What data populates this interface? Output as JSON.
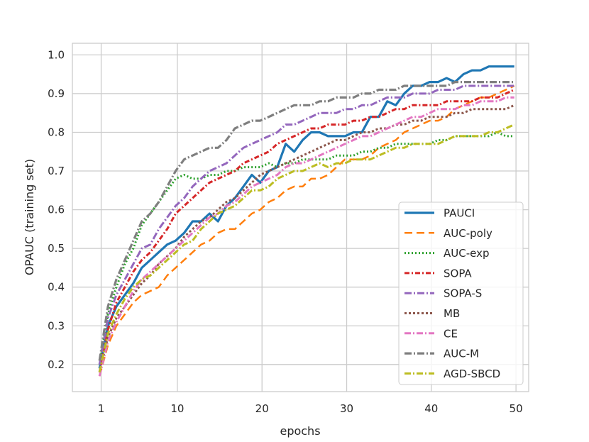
{
  "chart_data": {
    "type": "line",
    "xlabel": "epochs",
    "ylabel": "OPAUC (training set)",
    "xlim": [
      -2.4,
      51.5
    ],
    "ylim": [
      0.13,
      1.03
    ],
    "xticks": [
      1,
      10,
      20,
      30,
      40,
      50
    ],
    "xtick_labels": [
      "1",
      "10",
      "20",
      "30",
      "40",
      "50"
    ],
    "yticks": [
      0.2,
      0.3,
      0.4,
      0.5,
      0.6,
      0.7,
      0.8,
      0.9,
      1.0
    ],
    "ytick_labels": [
      "0.2",
      "0.3",
      "0.4",
      "0.5",
      "0.6",
      "0.7",
      "0.8",
      "0.9",
      "1.0"
    ],
    "grid": true,
    "legend_position": "lower-right",
    "x": [
      1,
      2,
      3,
      4,
      5,
      6,
      7,
      8,
      9,
      10,
      11,
      12,
      13,
      14,
      15,
      16,
      17,
      18,
      19,
      20,
      21,
      22,
      23,
      24,
      25,
      26,
      27,
      28,
      29,
      30,
      31,
      32,
      33,
      34,
      35,
      36,
      37,
      38,
      39,
      40,
      41,
      42,
      43,
      44,
      45,
      46,
      47,
      48,
      49,
      50
    ],
    "series": [
      {
        "name": "PAUCI",
        "color": "#1f77b4",
        "dash": "solid",
        "width": 3.2,
        "values": [
          0.19,
          0.3,
          0.35,
          0.38,
          0.41,
          0.45,
          0.47,
          0.49,
          0.51,
          0.52,
          0.54,
          0.57,
          0.57,
          0.59,
          0.57,
          0.61,
          0.63,
          0.66,
          0.69,
          0.67,
          0.7,
          0.71,
          0.77,
          0.75,
          0.78,
          0.8,
          0.8,
          0.79,
          0.79,
          0.79,
          0.8,
          0.8,
          0.84,
          0.84,
          0.88,
          0.87,
          0.9,
          0.92,
          0.92,
          0.93,
          0.93,
          0.94,
          0.93,
          0.95,
          0.96,
          0.96,
          0.97,
          0.97,
          0.97,
          0.97
        ]
      },
      {
        "name": "AUC-poly",
        "color": "#ff7f0e",
        "dash": "11,6",
        "width": 2.5,
        "values": [
          0.17,
          0.25,
          0.3,
          0.33,
          0.36,
          0.38,
          0.39,
          0.4,
          0.43,
          0.45,
          0.47,
          0.49,
          0.51,
          0.52,
          0.54,
          0.55,
          0.55,
          0.57,
          0.59,
          0.6,
          0.62,
          0.63,
          0.65,
          0.66,
          0.66,
          0.68,
          0.68,
          0.69,
          0.71,
          0.73,
          0.73,
          0.73,
          0.74,
          0.76,
          0.77,
          0.78,
          0.8,
          0.81,
          0.82,
          0.83,
          0.83,
          0.84,
          0.86,
          0.87,
          0.88,
          0.89,
          0.89,
          0.9,
          0.91,
          0.92
        ]
      },
      {
        "name": "AUC-exp",
        "color": "#2ca02c",
        "dash": "2,3",
        "width": 3,
        "values": [
          0.2,
          0.33,
          0.4,
          0.46,
          0.5,
          0.56,
          0.59,
          0.62,
          0.65,
          0.68,
          0.69,
          0.68,
          0.68,
          0.69,
          0.69,
          0.7,
          0.7,
          0.71,
          0.71,
          0.71,
          0.72,
          0.71,
          0.72,
          0.72,
          0.73,
          0.73,
          0.73,
          0.73,
          0.74,
          0.74,
          0.74,
          0.75,
          0.75,
          0.76,
          0.76,
          0.77,
          0.77,
          0.77,
          0.77,
          0.77,
          0.78,
          0.78,
          0.79,
          0.79,
          0.79,
          0.79,
          0.79,
          0.8,
          0.79,
          0.79
        ]
      },
      {
        "name": "SOPA",
        "color": "#d62728",
        "dash": "7,3,2,3",
        "width": 3,
        "values": [
          0.18,
          0.29,
          0.36,
          0.4,
          0.44,
          0.47,
          0.49,
          0.52,
          0.55,
          0.59,
          0.61,
          0.63,
          0.65,
          0.67,
          0.68,
          0.69,
          0.7,
          0.72,
          0.73,
          0.74,
          0.75,
          0.77,
          0.78,
          0.79,
          0.8,
          0.81,
          0.81,
          0.82,
          0.82,
          0.82,
          0.83,
          0.83,
          0.84,
          0.84,
          0.85,
          0.86,
          0.86,
          0.87,
          0.87,
          0.87,
          0.87,
          0.88,
          0.88,
          0.88,
          0.88,
          0.89,
          0.89,
          0.89,
          0.9,
          0.91
        ]
      },
      {
        "name": "SOPA-S",
        "color": "#9467bd",
        "dash": "10,3,2,3",
        "width": 3,
        "values": [
          0.2,
          0.32,
          0.38,
          0.42,
          0.46,
          0.5,
          0.51,
          0.55,
          0.58,
          0.61,
          0.63,
          0.66,
          0.68,
          0.7,
          0.71,
          0.72,
          0.74,
          0.76,
          0.77,
          0.78,
          0.79,
          0.8,
          0.82,
          0.82,
          0.83,
          0.84,
          0.85,
          0.85,
          0.85,
          0.86,
          0.86,
          0.87,
          0.87,
          0.88,
          0.89,
          0.89,
          0.89,
          0.9,
          0.9,
          0.9,
          0.91,
          0.91,
          0.91,
          0.92,
          0.92,
          0.92,
          0.92,
          0.92,
          0.92,
          0.92
        ]
      },
      {
        "name": "MB",
        "color": "#8c564b",
        "dash": "3,3",
        "width": 3,
        "values": [
          0.18,
          0.27,
          0.32,
          0.35,
          0.38,
          0.41,
          0.43,
          0.46,
          0.48,
          0.5,
          0.53,
          0.55,
          0.57,
          0.58,
          0.6,
          0.62,
          0.63,
          0.65,
          0.67,
          0.69,
          0.7,
          0.71,
          0.72,
          0.73,
          0.74,
          0.75,
          0.76,
          0.77,
          0.78,
          0.78,
          0.79,
          0.8,
          0.8,
          0.81,
          0.81,
          0.82,
          0.82,
          0.83,
          0.83,
          0.84,
          0.84,
          0.84,
          0.85,
          0.85,
          0.86,
          0.86,
          0.86,
          0.86,
          0.86,
          0.87
        ]
      },
      {
        "name": "CE",
        "color": "#e377c2",
        "dash": "9,3,2,3",
        "width": 3,
        "values": [
          0.17,
          0.26,
          0.31,
          0.35,
          0.39,
          0.42,
          0.44,
          0.46,
          0.48,
          0.5,
          0.52,
          0.54,
          0.56,
          0.58,
          0.59,
          0.61,
          0.62,
          0.64,
          0.66,
          0.67,
          0.68,
          0.69,
          0.71,
          0.72,
          0.72,
          0.73,
          0.74,
          0.75,
          0.76,
          0.77,
          0.78,
          0.79,
          0.79,
          0.8,
          0.81,
          0.82,
          0.83,
          0.84,
          0.84,
          0.85,
          0.86,
          0.86,
          0.86,
          0.87,
          0.87,
          0.88,
          0.88,
          0.88,
          0.89,
          0.89
        ]
      },
      {
        "name": "AUC-M",
        "color": "#7f7f7f",
        "dash": "10,3,2,3",
        "width": 3.2,
        "values": [
          0.21,
          0.35,
          0.42,
          0.47,
          0.52,
          0.57,
          0.59,
          0.62,
          0.66,
          0.7,
          0.73,
          0.74,
          0.75,
          0.76,
          0.76,
          0.78,
          0.81,
          0.82,
          0.83,
          0.83,
          0.84,
          0.85,
          0.86,
          0.87,
          0.87,
          0.87,
          0.88,
          0.88,
          0.89,
          0.89,
          0.89,
          0.9,
          0.9,
          0.91,
          0.91,
          0.91,
          0.92,
          0.92,
          0.92,
          0.92,
          0.92,
          0.92,
          0.93,
          0.93,
          0.93,
          0.93,
          0.93,
          0.93,
          0.93,
          0.93
        ]
      },
      {
        "name": "AGD-SBCD",
        "color": "#bcbd22",
        "dash": "9,3,2,3",
        "width": 3,
        "values": [
          0.18,
          0.28,
          0.33,
          0.37,
          0.4,
          0.42,
          0.43,
          0.45,
          0.47,
          0.49,
          0.51,
          0.52,
          0.55,
          0.57,
          0.59,
          0.6,
          0.61,
          0.63,
          0.65,
          0.65,
          0.66,
          0.68,
          0.69,
          0.7,
          0.7,
          0.71,
          0.72,
          0.71,
          0.72,
          0.72,
          0.73,
          0.73,
          0.73,
          0.74,
          0.75,
          0.76,
          0.76,
          0.77,
          0.77,
          0.77,
          0.77,
          0.78,
          0.79,
          0.79,
          0.79,
          0.79,
          0.8,
          0.8,
          0.81,
          0.82
        ]
      }
    ]
  }
}
